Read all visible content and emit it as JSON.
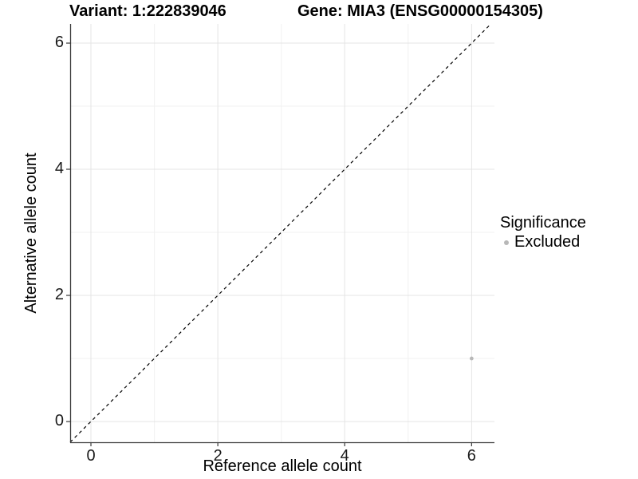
{
  "figure": {
    "title_left": "Variant: 1:222839046",
    "title_right": "Gene: MIA3 (ENSG00000154305)"
  },
  "axes": {
    "x": {
      "title": "Reference allele count",
      "tick_labels": [
        "0",
        "2",
        "4",
        "6"
      ]
    },
    "y": {
      "title": "Alternative allele count",
      "tick_labels": [
        "0",
        "2",
        "4",
        "6"
      ]
    }
  },
  "legend": {
    "title": "Significance",
    "items": [
      {
        "label": "Excluded",
        "color": "#b8b8b8"
      }
    ]
  },
  "chart_data": {
    "type": "scatter",
    "title": "Variant: 1:222839046 | Gene: MIA3 (ENSG00000154305)",
    "xlabel": "Reference allele count",
    "ylabel": "Alternative allele count",
    "xlim": [
      -0.327,
      6.36
    ],
    "ylim": [
      -0.329,
      6.304
    ],
    "x_major_ticks": [
      0,
      2,
      4,
      6
    ],
    "y_major_ticks": [
      0,
      2,
      4,
      6
    ],
    "x_minor_ticks": [
      1,
      3,
      5
    ],
    "y_minor_ticks": [
      1,
      3,
      5
    ],
    "grid": "major+minor",
    "legend_position": "right",
    "series": [
      {
        "name": "Excluded",
        "color": "#b8b8b8",
        "point_radius": 2.4,
        "points": [
          {
            "x": 6,
            "y": 1
          }
        ]
      }
    ],
    "reference_line": {
      "kind": "identity",
      "slope": 1,
      "intercept": 0,
      "linetype": "dashed",
      "color": "#000000"
    }
  },
  "colors": {
    "background": "#ffffff",
    "axis_line": "#3a3a3a",
    "grid_major": "#e4e4e4",
    "grid_minor": "#f1f1f1",
    "point": "#b8b8b8",
    "reference_line": "#000000",
    "text": "#000000"
  }
}
